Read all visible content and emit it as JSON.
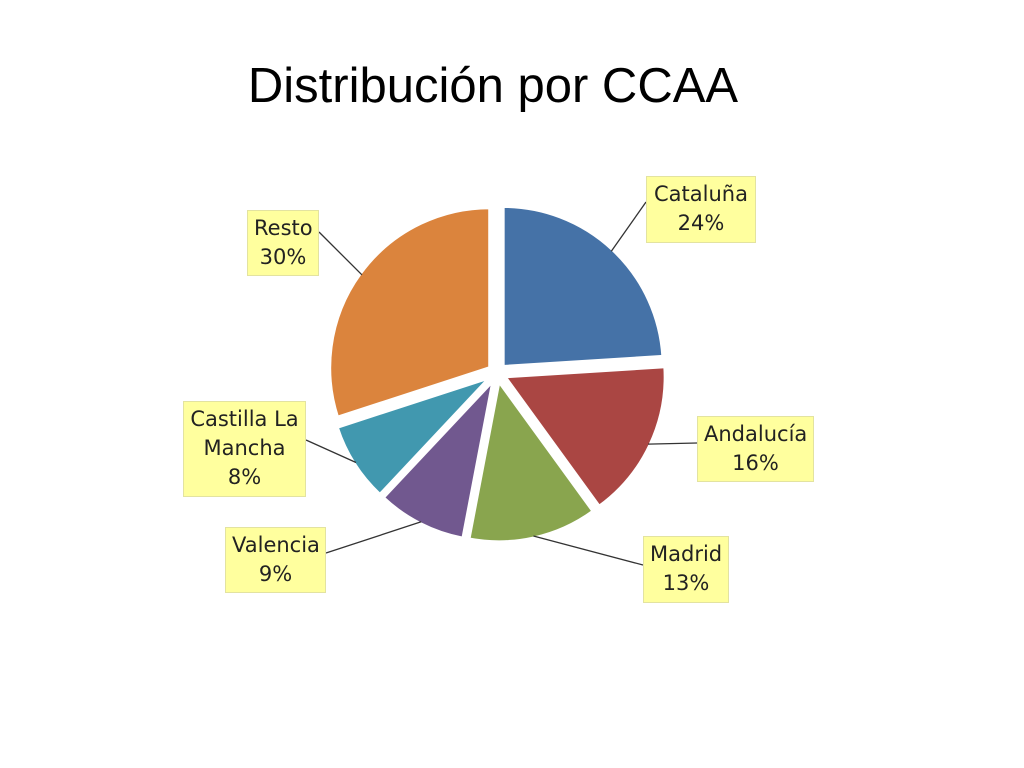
{
  "slide": {
    "title": "Distribución por CCAA"
  },
  "chart_data": {
    "type": "pie",
    "title": "",
    "categories": [
      "Cataluña",
      "Andalucía",
      "Madrid",
      "Valencia",
      "Castilla La Mancha",
      "Resto"
    ],
    "values": [
      24,
      16,
      13,
      9,
      8,
      30
    ],
    "value_labels": [
      "24%",
      "16%",
      "13%",
      "9%",
      "8%",
      "30%"
    ],
    "colors": [
      "#4572a7",
      "#aa4643",
      "#89a54e",
      "#71588f",
      "#4198af",
      "#db843d"
    ],
    "label_background": "#ffff9e",
    "exploded": true,
    "legend": "none",
    "labels": [
      {
        "name_lines": [
          "Cataluña"
        ],
        "value": "24%"
      },
      {
        "name_lines": [
          "Andalucía"
        ],
        "value": "16%"
      },
      {
        "name_lines": [
          "Madrid"
        ],
        "value": "13%"
      },
      {
        "name_lines": [
          "Valencia"
        ],
        "value": "9%"
      },
      {
        "name_lines": [
          "Castilla La",
          "Mancha"
        ],
        "value": "8%"
      },
      {
        "name_lines": [
          "Resto"
        ],
        "value": "30%"
      }
    ]
  }
}
